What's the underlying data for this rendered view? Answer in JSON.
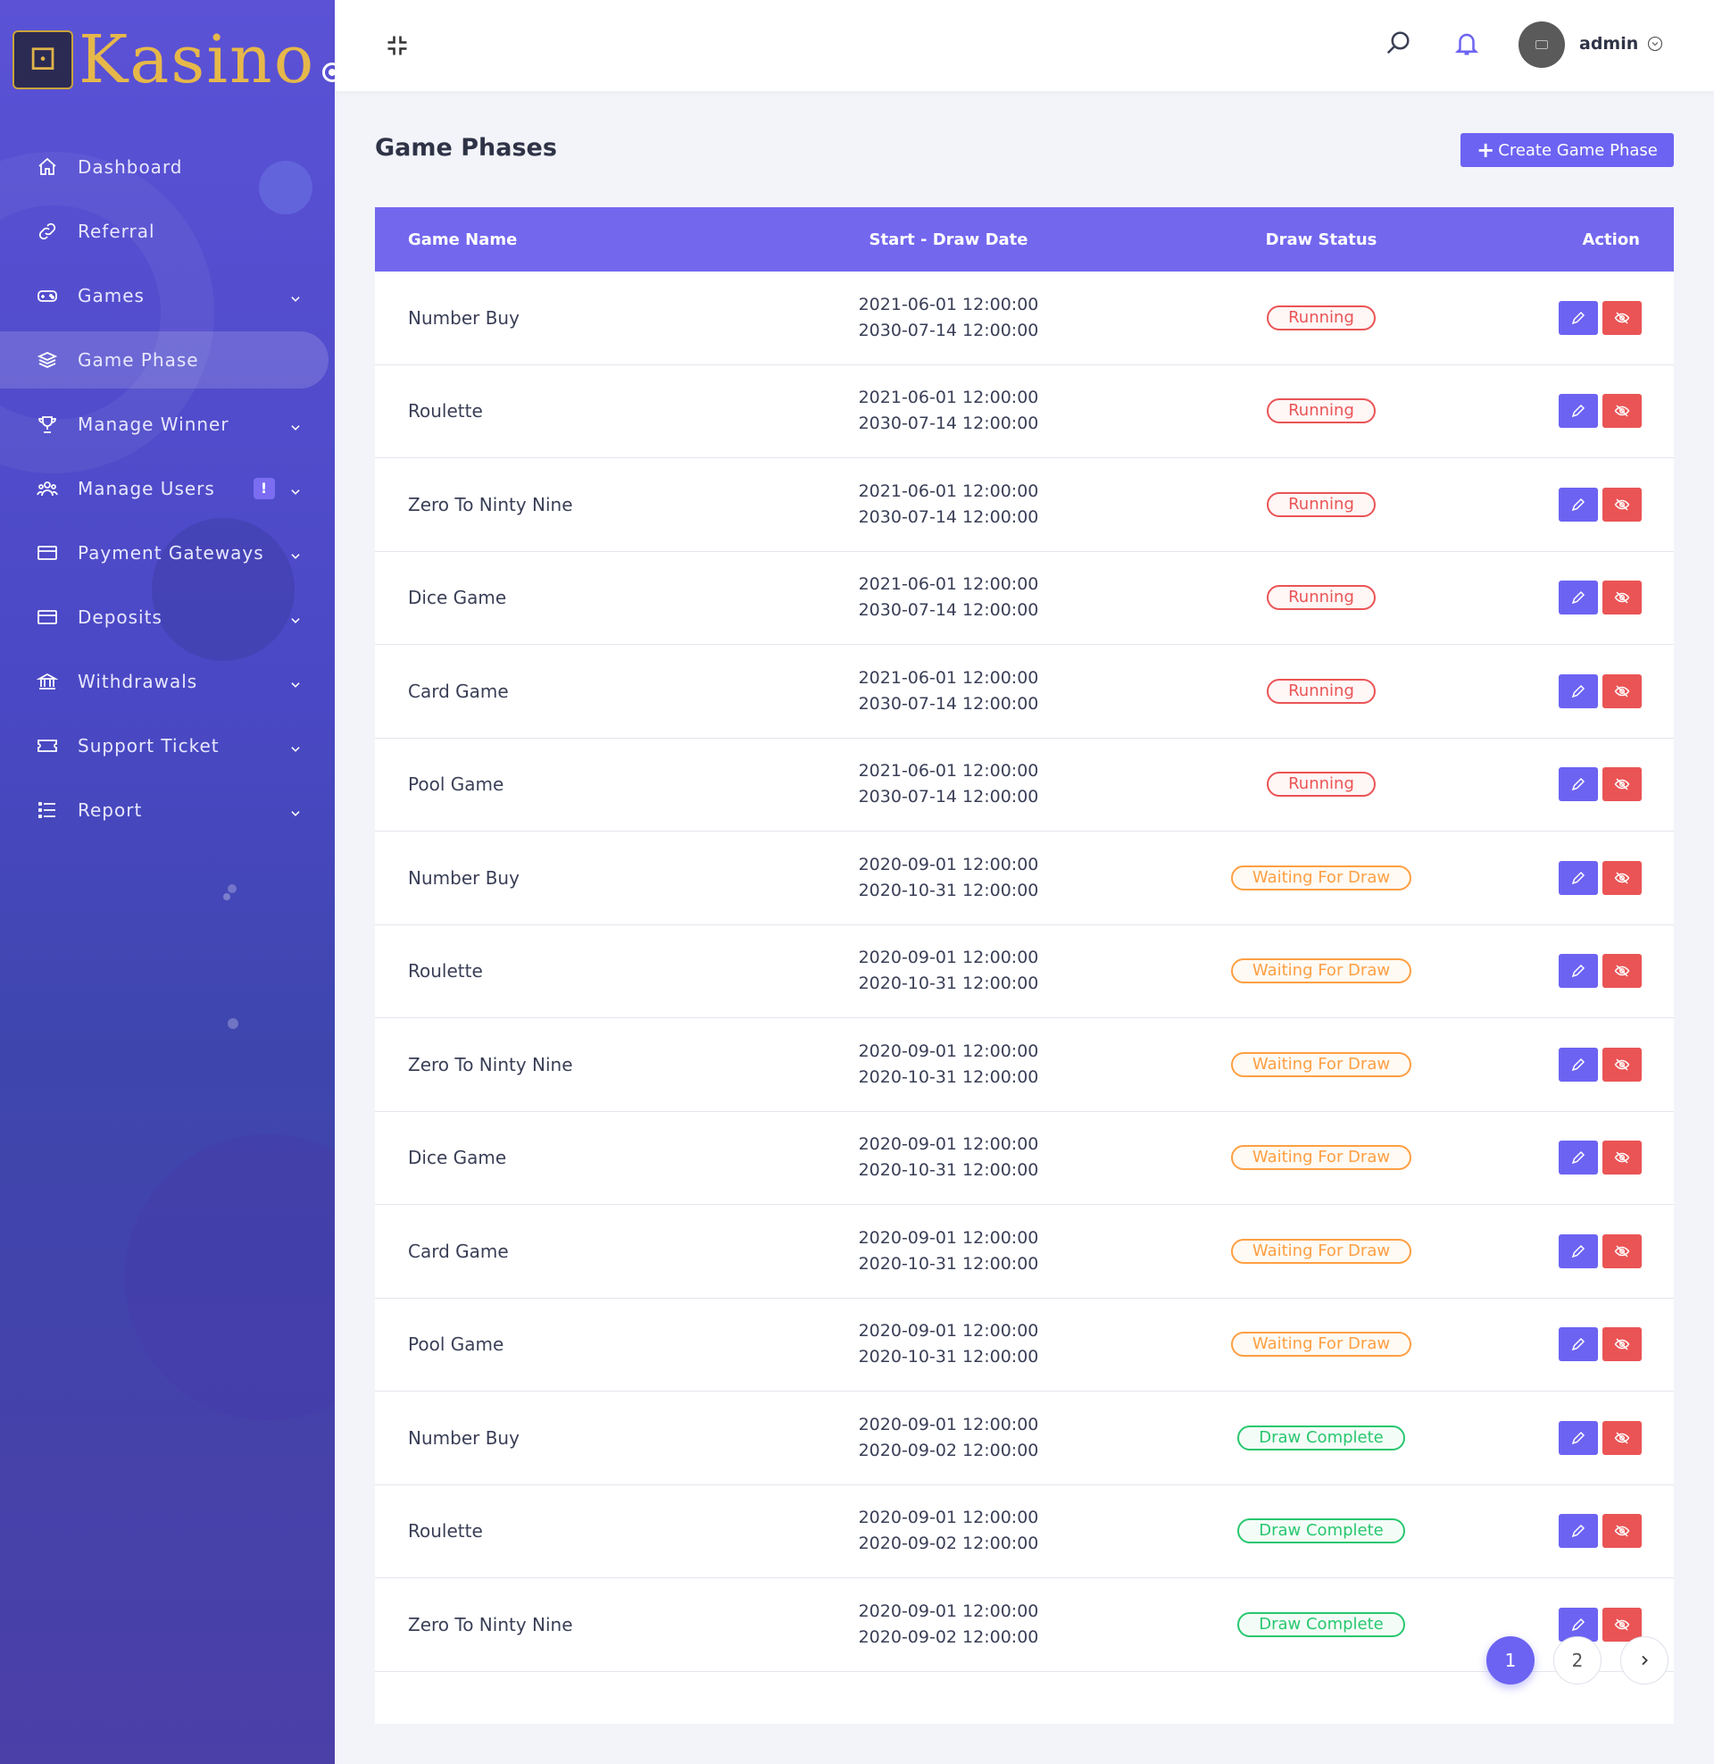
{
  "brand": {
    "name": "Kasino"
  },
  "colors": {
    "primary": "#6c63f2",
    "danger": "#ea5455",
    "warning": "#ff9f43",
    "success": "#28c76f"
  },
  "sidebar": {
    "items": [
      {
        "label": "Dashboard",
        "icon": "home-icon",
        "has_children": false
      },
      {
        "label": "Referral",
        "icon": "link-icon",
        "has_children": false
      },
      {
        "label": "Games",
        "icon": "gamepad-icon",
        "has_children": true
      },
      {
        "label": "Game Phase",
        "icon": "layers-icon",
        "has_children": false,
        "active": true
      },
      {
        "label": "Manage Winner",
        "icon": "trophy-icon",
        "has_children": true
      },
      {
        "label": "Manage Users",
        "icon": "users-icon",
        "has_children": true,
        "badge": "!"
      },
      {
        "label": "Payment Gateways",
        "icon": "credit-card-icon",
        "has_children": true
      },
      {
        "label": "Deposits",
        "icon": "credit-card-icon",
        "has_children": true
      },
      {
        "label": "Withdrawals",
        "icon": "bank-icon",
        "has_children": true
      },
      {
        "label": "Support Ticket",
        "icon": "ticket-icon",
        "has_children": true
      },
      {
        "label": "Report",
        "icon": "list-icon",
        "has_children": true
      }
    ]
  },
  "header": {
    "user_name": "admin"
  },
  "main": {
    "title": "Game Phases",
    "create_button": "Create Game Phase",
    "table": {
      "headers": [
        "Game Name",
        "Start - Draw Date",
        "Draw Status",
        "Action"
      ],
      "rows": [
        {
          "name": "Number Buy",
          "start": "2021-06-01 12:00:00",
          "draw": "2030-07-14 12:00:00",
          "status": "Running",
          "status_type": "running"
        },
        {
          "name": "Roulette",
          "start": "2021-06-01 12:00:00",
          "draw": "2030-07-14 12:00:00",
          "status": "Running",
          "status_type": "running"
        },
        {
          "name": "Zero To Ninty Nine",
          "start": "2021-06-01 12:00:00",
          "draw": "2030-07-14 12:00:00",
          "status": "Running",
          "status_type": "running"
        },
        {
          "name": "Dice Game",
          "start": "2021-06-01 12:00:00",
          "draw": "2030-07-14 12:00:00",
          "status": "Running",
          "status_type": "running"
        },
        {
          "name": "Card Game",
          "start": "2021-06-01 12:00:00",
          "draw": "2030-07-14 12:00:00",
          "status": "Running",
          "status_type": "running"
        },
        {
          "name": "Pool Game",
          "start": "2021-06-01 12:00:00",
          "draw": "2030-07-14 12:00:00",
          "status": "Running",
          "status_type": "running"
        },
        {
          "name": "Number Buy",
          "start": "2020-09-01 12:00:00",
          "draw": "2020-10-31 12:00:00",
          "status": "Waiting For Draw",
          "status_type": "waiting"
        },
        {
          "name": "Roulette",
          "start": "2020-09-01 12:00:00",
          "draw": "2020-10-31 12:00:00",
          "status": "Waiting For Draw",
          "status_type": "waiting"
        },
        {
          "name": "Zero To Ninty Nine",
          "start": "2020-09-01 12:00:00",
          "draw": "2020-10-31 12:00:00",
          "status": "Waiting For Draw",
          "status_type": "waiting"
        },
        {
          "name": "Dice Game",
          "start": "2020-09-01 12:00:00",
          "draw": "2020-10-31 12:00:00",
          "status": "Waiting For Draw",
          "status_type": "waiting"
        },
        {
          "name": "Card Game",
          "start": "2020-09-01 12:00:00",
          "draw": "2020-10-31 12:00:00",
          "status": "Waiting For Draw",
          "status_type": "waiting"
        },
        {
          "name": "Pool Game",
          "start": "2020-09-01 12:00:00",
          "draw": "2020-10-31 12:00:00",
          "status": "Waiting For Draw",
          "status_type": "waiting"
        },
        {
          "name": "Number Buy",
          "start": "2020-09-01 12:00:00",
          "draw": "2020-09-02 12:00:00",
          "status": "Draw Complete",
          "status_type": "complete"
        },
        {
          "name": "Roulette",
          "start": "2020-09-01 12:00:00",
          "draw": "2020-09-02 12:00:00",
          "status": "Draw Complete",
          "status_type": "complete"
        },
        {
          "name": "Zero To Ninty Nine",
          "start": "2020-09-01 12:00:00",
          "draw": "2020-09-02 12:00:00",
          "status": "Draw Complete",
          "status_type": "complete"
        }
      ]
    },
    "pagination": {
      "pages": [
        "1",
        "2"
      ],
      "current": "1"
    }
  }
}
